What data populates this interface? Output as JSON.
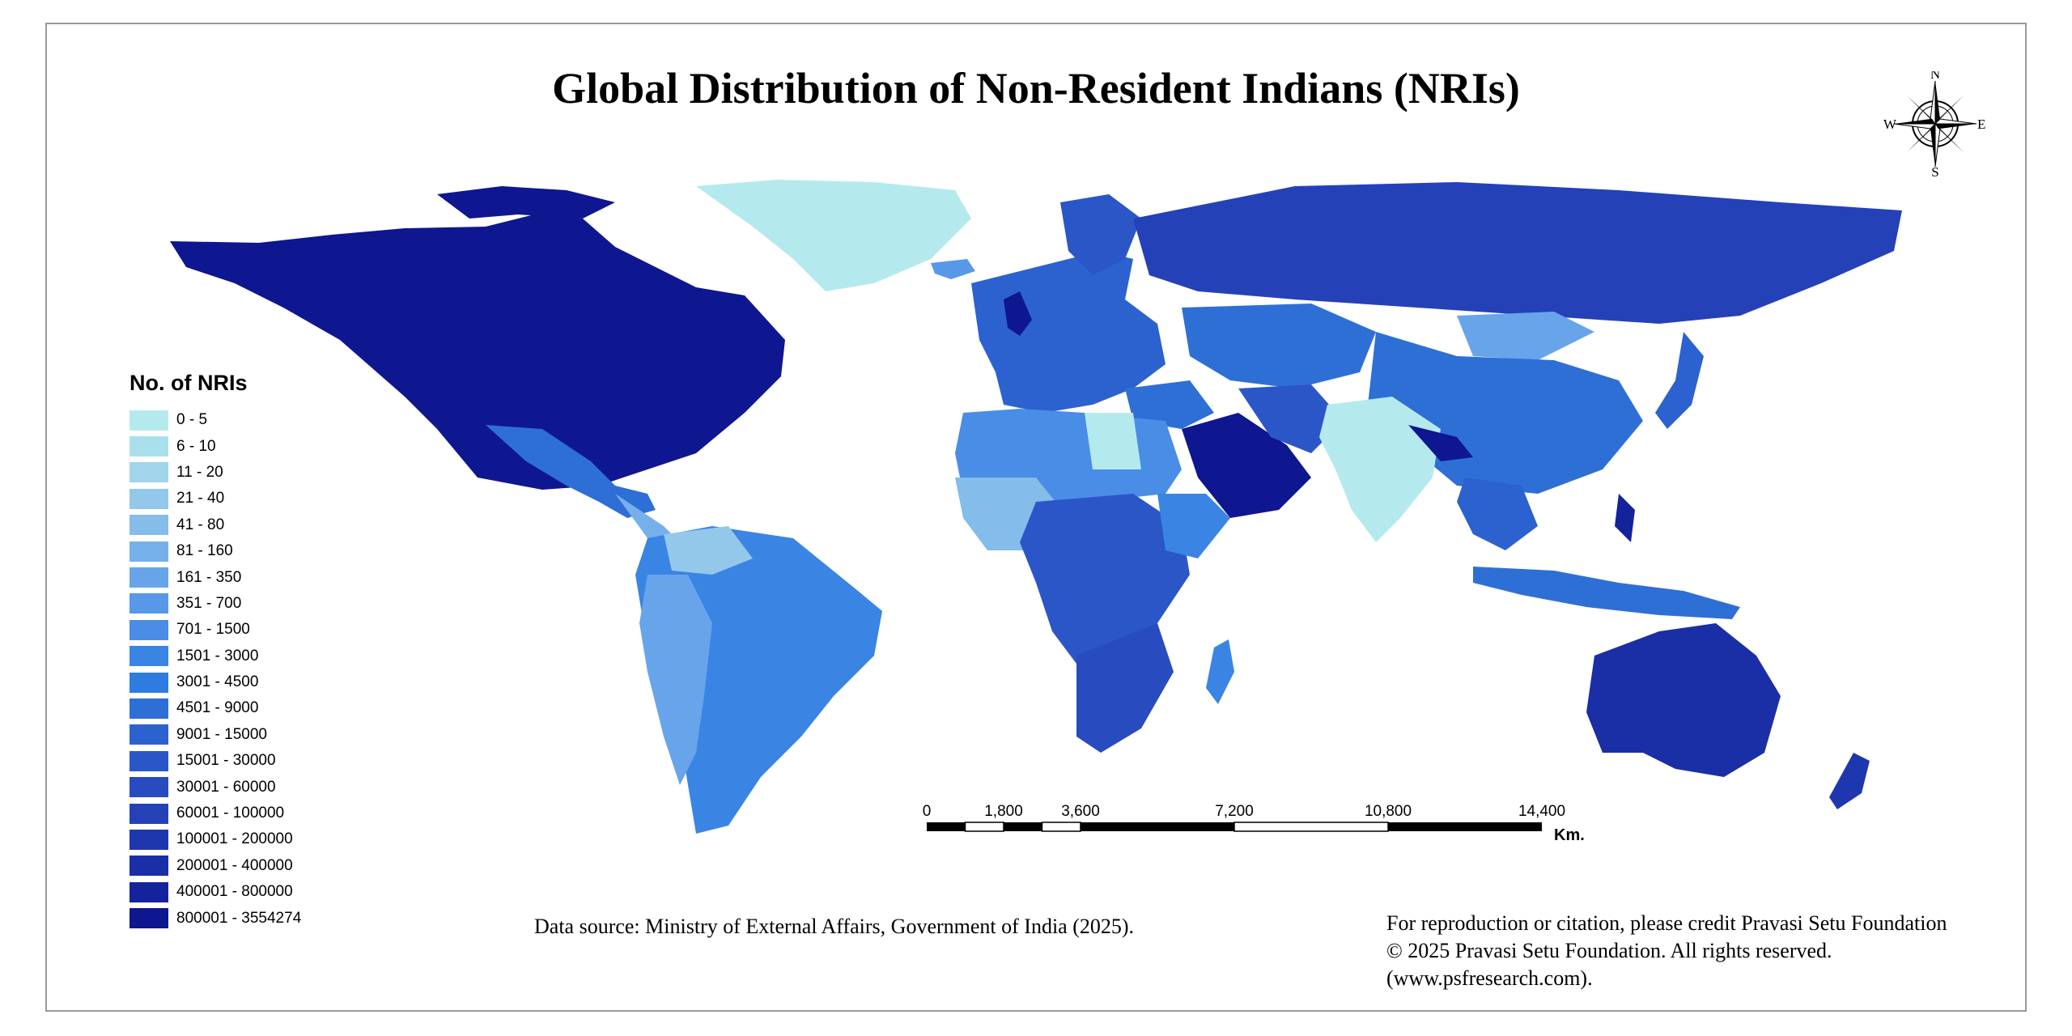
{
  "title": "Global Distribution of Non-Resident Indians (NRIs)",
  "compass": {
    "n": "N",
    "s": "S",
    "e": "E",
    "w": "W"
  },
  "legend": {
    "title": "No. of NRIs",
    "items": [
      {
        "label": "0 - 5",
        "color": "#b4eaee"
      },
      {
        "label": "6 - 10",
        "color": "#aae0eb"
      },
      {
        "label": "11 - 20",
        "color": "#a0d5ea"
      },
      {
        "label": "21 - 40",
        "color": "#93c8ea"
      },
      {
        "label": "41 - 80",
        "color": "#84bcea"
      },
      {
        "label": "81 - 160",
        "color": "#76b0eb"
      },
      {
        "label": "161 - 350",
        "color": "#67a4ea"
      },
      {
        "label": "351 - 700",
        "color": "#5898e8"
      },
      {
        "label": "701 - 1500",
        "color": "#4a8de6"
      },
      {
        "label": "1501 - 3000",
        "color": "#3a84e4"
      },
      {
        "label": "3001 - 4500",
        "color": "#2f7ce0"
      },
      {
        "label": "4501 - 9000",
        "color": "#2e6fd6"
      },
      {
        "label": "9001 - 15000",
        "color": "#2c62cf"
      },
      {
        "label": "15001 - 30000",
        "color": "#2b56c8"
      },
      {
        "label": "30001 - 60000",
        "color": "#284bc0"
      },
      {
        "label": "60001 - 100000",
        "color": "#2441b8"
      },
      {
        "label": "100001 - 200000",
        "color": "#1f37ae"
      },
      {
        "label": "200001 - 400000",
        "color": "#1a2ea5"
      },
      {
        "label": "400001 - 800000",
        "color": "#14239b"
      },
      {
        "label": "800001 - 3554274",
        "color": "#0e1690"
      }
    ]
  },
  "scale": {
    "ticks": [
      "0",
      "1,800",
      "3,600",
      "7,200",
      "10,800",
      "14,400"
    ],
    "unit": "Km."
  },
  "source": "Data source: Ministry of External Affairs, Government of India (2025).",
  "credit": {
    "line1": "For reproduction or citation, please credit Pravasi Setu Foundation",
    "line2": "© 2025 Pravasi Setu Foundation. All rights reserved.",
    "line3": "(www.psfresearch.com)."
  }
}
